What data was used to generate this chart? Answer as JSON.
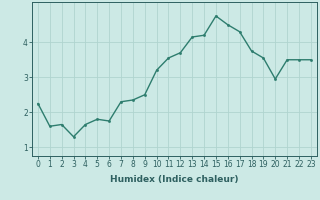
{
  "x": [
    0,
    1,
    2,
    3,
    4,
    5,
    6,
    7,
    8,
    9,
    10,
    11,
    12,
    13,
    14,
    15,
    16,
    17,
    18,
    19,
    20,
    21,
    22,
    23
  ],
  "y": [
    2.25,
    1.6,
    1.65,
    1.3,
    1.65,
    1.8,
    1.75,
    2.3,
    2.35,
    2.5,
    3.2,
    3.55,
    3.7,
    4.15,
    4.2,
    4.75,
    4.5,
    4.3,
    3.75,
    3.55,
    2.95,
    3.5,
    3.5,
    3.5
  ],
  "line_color": "#2e7d6e",
  "marker": ".",
  "marker_size": 3,
  "bg_color": "#cce9e5",
  "grid_color": "#b0d4cf",
  "xlabel": "Humidex (Indice chaleur)",
  "xlim": [
    -0.5,
    23.5
  ],
  "ylim": [
    0.75,
    5.15
  ],
  "yticks": [
    1,
    2,
    3,
    4
  ],
  "xticks": [
    0,
    1,
    2,
    3,
    4,
    5,
    6,
    7,
    8,
    9,
    10,
    11,
    12,
    13,
    14,
    15,
    16,
    17,
    18,
    19,
    20,
    21,
    22,
    23
  ],
  "tick_color": "#2e6060",
  "axis_color": "#2e6060",
  "xlabel_fontsize": 6.5,
  "tick_fontsize": 5.5,
  "line_width": 1.0
}
